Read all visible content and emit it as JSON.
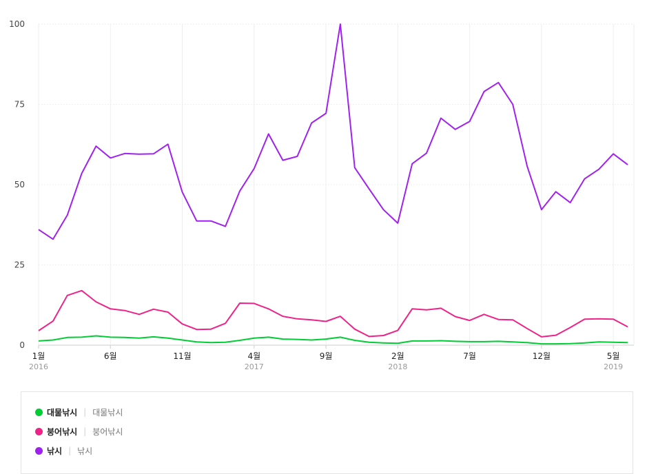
{
  "chart_data": {
    "type": "line",
    "ylim": [
      0,
      100
    ],
    "yticks": [
      0,
      25,
      50,
      75,
      100
    ],
    "grid": true,
    "x_labels": [
      {
        "index": 0,
        "month": "1월",
        "year": "2016"
      },
      {
        "index": 5,
        "month": "6월",
        "year": ""
      },
      {
        "index": 10,
        "month": "11월",
        "year": ""
      },
      {
        "index": 15,
        "month": "4월",
        "year": "2017"
      },
      {
        "index": 20,
        "month": "9월",
        "year": ""
      },
      {
        "index": 25,
        "month": "2월",
        "year": "2018"
      },
      {
        "index": 30,
        "month": "7월",
        "year": ""
      },
      {
        "index": 35,
        "month": "12월",
        "year": ""
      },
      {
        "index": 40,
        "month": "5월",
        "year": "2019"
      }
    ],
    "series": [
      {
        "name": "대물낚시",
        "color": "#00cc33",
        "values": [
          1.3,
          1.6,
          2.4,
          2.5,
          2.9,
          2.5,
          2.4,
          2.2,
          2.6,
          2.2,
          1.6,
          1.0,
          0.8,
          0.9,
          1.5,
          2.2,
          2.5,
          1.9,
          1.8,
          1.6,
          1.9,
          2.5,
          1.5,
          0.9,
          0.7,
          0.6,
          1.3,
          1.3,
          1.4,
          1.2,
          1.1,
          1.1,
          1.2,
          1.0,
          0.8,
          0.4,
          0.4,
          0.5,
          0.7,
          1.0,
          0.9,
          0.8
        ]
      },
      {
        "name": "붕어낚시",
        "color": "#ee2288",
        "values": [
          4.5,
          7.5,
          15.5,
          17.0,
          13.5,
          11.3,
          10.8,
          9.6,
          11.2,
          10.3,
          6.6,
          4.9,
          5.0,
          6.8,
          13.1,
          13.0,
          11.3,
          9.0,
          8.2,
          7.9,
          7.4,
          9.0,
          5.0,
          2.7,
          3.0,
          4.6,
          11.3,
          11.0,
          11.5,
          8.9,
          7.7,
          9.6,
          8.0,
          7.9,
          5.2,
          2.6,
          3.1,
          5.5,
          8.1,
          8.2,
          8.1,
          5.7
        ]
      },
      {
        "name": "낚시",
        "color": "#a020f0",
        "values": [
          36.0,
          33.0,
          40.5,
          53.5,
          62.0,
          58.3,
          59.7,
          59.5,
          59.6,
          62.6,
          47.7,
          38.7,
          38.7,
          37.0,
          48.0,
          55.0,
          65.8,
          57.6,
          58.8,
          69.2,
          72.2,
          100.0,
          55.3,
          48.7,
          42.2,
          38.0,
          56.5,
          59.8,
          70.7,
          67.2,
          69.7,
          79.0,
          81.8,
          75.0,
          55.8,
          42.2,
          47.8,
          44.4,
          51.8,
          54.8,
          59.6,
          56.2
        ]
      }
    ],
    "legend": [
      {
        "name": "대물낚시",
        "desc": "대물낚시",
        "color": "#00cc33"
      },
      {
        "name": "붕어낚시",
        "desc": "붕어낚시",
        "color": "#ee2288"
      },
      {
        "name": "낚시",
        "desc": "낚시",
        "color": "#a020f0"
      }
    ]
  }
}
